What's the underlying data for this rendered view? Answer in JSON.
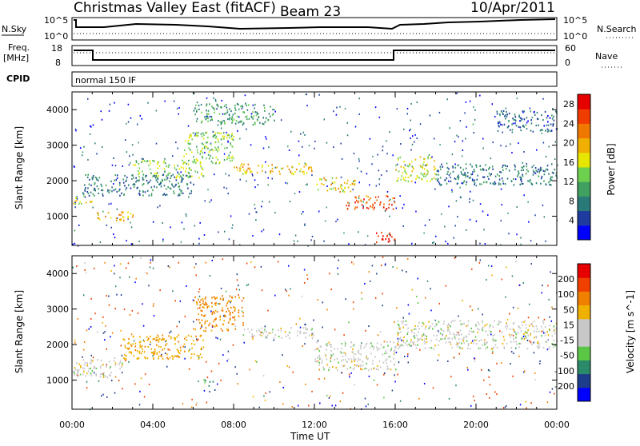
{
  "header": {
    "title": "Christmas Valley East (fitACF)",
    "beam": "Beam 23",
    "date": "10/Apr/2011"
  },
  "strips": {
    "nsky_label": "N.Sky",
    "nsky_ticks": [
      "10^5",
      "10^0"
    ],
    "nsearch_label": "N.Search",
    "nsearch_ticks": [
      "10^5",
      "10^0"
    ],
    "freq_label_line1": "Freq.",
    "freq_label_line2": "[MHz]",
    "freq_ticks": [
      "18",
      "8"
    ],
    "nave_label": "Nave",
    "nave_ticks": [
      "60",
      "0"
    ],
    "cpid_label": "CPID",
    "cpid_value": "normal 150 IF"
  },
  "chart_data": [
    {
      "type": "heatmap",
      "name": "Power panel",
      "ylabel": "Slant Range [km]",
      "yticks": [
        1000,
        2000,
        3000,
        4000
      ],
      "ylim": [
        180,
        4500
      ],
      "xlim": [
        0,
        24
      ],
      "colorbar": {
        "label": "Power [dB]",
        "ticks": [
          4,
          8,
          12,
          16,
          20,
          24,
          28
        ],
        "range": [
          0,
          30
        ],
        "colors": [
          "#0000ff",
          "#1e3ca0",
          "#2a7a7a",
          "#3fa060",
          "#6fd050",
          "#e6e600",
          "#f0b000",
          "#f07800",
          "#f03c00",
          "#e60000"
        ]
      },
      "bands": [
        {
          "x": [
            0.0,
            1.0
          ],
          "y": [
            1350,
            1600
          ],
          "level": 16
        },
        {
          "x": [
            1.0,
            3.0
          ],
          "y": [
            900,
            1150
          ],
          "level": 20
        },
        {
          "x": [
            0.5,
            6.0
          ],
          "y": [
            1600,
            2200
          ],
          "level": 8
        },
        {
          "x": [
            3.0,
            6.5
          ],
          "y": [
            2100,
            2600
          ],
          "level": 14
        },
        {
          "x": [
            5.5,
            8.0
          ],
          "y": [
            2500,
            3400
          ],
          "level": 14
        },
        {
          "x": [
            6.0,
            10.0
          ],
          "y": [
            3600,
            4200
          ],
          "level": 10
        },
        {
          "x": [
            8.0,
            12.0
          ],
          "y": [
            2200,
            2500
          ],
          "level": 18
        },
        {
          "x": [
            12.0,
            14.0
          ],
          "y": [
            1700,
            2100
          ],
          "level": 18
        },
        {
          "x": [
            13.5,
            16.0
          ],
          "y": [
            1200,
            1600
          ],
          "level": 24
        },
        {
          "x": [
            15.0,
            16.0
          ],
          "y": [
            250,
            600
          ],
          "level": 28
        },
        {
          "x": [
            16.0,
            18.0
          ],
          "y": [
            2000,
            2700
          ],
          "level": 16
        },
        {
          "x": [
            18.0,
            24.0
          ],
          "y": [
            1900,
            2500
          ],
          "level": 8
        },
        {
          "x": [
            21.0,
            24.0
          ],
          "y": [
            3400,
            4000
          ],
          "level": 6
        }
      ]
    },
    {
      "type": "heatmap",
      "name": "Velocity panel",
      "ylabel": "Slant Range [km]",
      "xlabel": "Time UT",
      "xticks": [
        "00:00",
        "04:00",
        "08:00",
        "12:00",
        "16:00",
        "20:00",
        "00:00"
      ],
      "yticks": [
        1000,
        2000,
        3000,
        4000
      ],
      "ylim": [
        180,
        4500
      ],
      "xlim": [
        0,
        24
      ],
      "colorbar": {
        "label": "Velocity [m s^-1]",
        "ticks": [
          200,
          100,
          50,
          15,
          -15,
          -50,
          -100,
          -200
        ],
        "colors": [
          "#0000ff",
          "#1e3c8c",
          "#2a8a6a",
          "#5ac846",
          "#c8c8c8",
          "#c8c8c8",
          "#f0b000",
          "#f08000",
          "#f04000",
          "#e60000"
        ]
      },
      "bands": [
        {
          "x": [
            0.0,
            2.5
          ],
          "y": [
            1100,
            1650
          ],
          "level": 0
        },
        {
          "x": [
            2.5,
            6.5
          ],
          "y": [
            1600,
            2300
          ],
          "level": -40
        },
        {
          "x": [
            6.0,
            8.5
          ],
          "y": [
            2400,
            3400
          ],
          "level": -60
        },
        {
          "x": [
            8.5,
            12.0
          ],
          "y": [
            2200,
            2500
          ],
          "level": 0
        },
        {
          "x": [
            12.0,
            16.0
          ],
          "y": [
            1300,
            2100
          ],
          "level": 0
        },
        {
          "x": [
            16.0,
            24.0
          ],
          "y": [
            1900,
            2700
          ],
          "level": 0
        },
        {
          "x": [
            6.5,
            7.0
          ],
          "y": [
            850,
            1050
          ],
          "level": 40
        }
      ]
    }
  ]
}
